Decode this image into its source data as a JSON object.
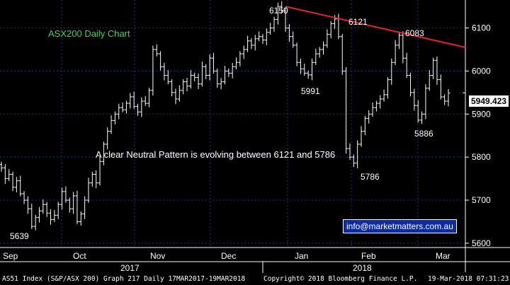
{
  "chart_data": {
    "type": "bar",
    "subtype": "ohlc",
    "title": "ASX200 Daily Chart",
    "ylim": [
      5590,
      6165
    ],
    "yticks": [
      5600,
      5700,
      5800,
      5900,
      6000,
      6100
    ],
    "ytick_labels": [
      "5600",
      "5700",
      "5800",
      "5900",
      "6000",
      "6100"
    ],
    "months": [
      "Sep",
      "Oct",
      "Nov",
      "Dec",
      "Jan",
      "Feb",
      "Mar"
    ],
    "years": [
      "2017",
      "2018"
    ],
    "grid": true,
    "axis_side": "right",
    "last_price": 5949.423,
    "last_price_label": "5949.423",
    "note": "A clear Neutral Pattern is evolving between 6121 and 5786",
    "watermark": "info@marketmatters.com.au",
    "annotations": [
      {
        "label": "6150",
        "value": 6150,
        "date": "2018-01-03"
      },
      {
        "label": "6121",
        "value": 6121,
        "date": "2018-01-29"
      },
      {
        "label": "6083",
        "value": 6083,
        "date": "2018-02-27"
      },
      {
        "label": "5991",
        "value": 5991,
        "date": "2018-01-15"
      },
      {
        "label": "5786",
        "value": 5786,
        "date": "2018-02-09"
      },
      {
        "label": "5886",
        "value": 5886,
        "date": "2018-03-06"
      },
      {
        "label": "5639",
        "value": 5639,
        "date": "2017-09-07"
      }
    ],
    "trendline": {
      "from": {
        "date": "2018-01-03",
        "value": 6150
      },
      "to": {
        "date": "2018-03-19",
        "value": 6055
      },
      "color": "#e8202c"
    },
    "series": [
      {
        "values": [
          [
            5775,
            5750,
            5760,
            5730,
            5745,
            5715,
            5700,
            5680,
            5639,
            5660,
            5675,
            5690,
            5670,
            5655,
            5665,
            5690,
            5720,
            5700,
            5680,
            5710,
            5650,
            5668,
            5700,
            5740,
            5760,
            5740,
            5790,
            5830,
            5860,
            5885,
            5900,
            5915,
            5910,
            5925,
            5940,
            5918,
            5905,
            5930,
            5925,
            5955,
            6050,
            6040,
            6010,
            5990,
            5975,
            5950,
            5935,
            5955,
            5975,
            5965,
            5990,
            5985,
            5970,
            6010,
            5990,
            6030,
            6000,
            5970,
            5975,
            6000,
            5995,
            6010,
            6020,
            6040,
            6050,
            6070,
            6060,
            6075,
            6080,
            6072,
            6090,
            6100,
            6120,
            6150,
            6140,
            6100,
            6080,
            6060,
            6020,
            6005,
            5995,
            5991,
            6020,
            6040,
            6050,
            6060,
            6085,
            6110,
            6121,
            6080,
            6000,
            5820,
            5800,
            5786,
            5830,
            5860,
            5890,
            5900,
            5915,
            5925,
            5935,
            5945,
            5980,
            6020,
            6060,
            6083,
            6030,
            5990,
            5950,
            5920,
            5886,
            5900,
            5960,
            5990,
            6025,
            5980,
            5940,
            5930,
            5949
          ]
        ]
      }
    ]
  },
  "footer": {
    "left": "AS51 Index (S&P/ASX 200) Graph 217  Daily 17MAR2017-19MAR2018",
    "right": "Copyright© 2018 Bloomberg Finance L.P.",
    "timestamp": "19-Mar-2018 07:31:23"
  },
  "colors": {
    "background": "#000000",
    "grid": "#1a3a8a",
    "title": "#4cd14c",
    "trendline": "#e8202c",
    "bars": "#ffffff",
    "email_box": "#0b2aa8"
  }
}
